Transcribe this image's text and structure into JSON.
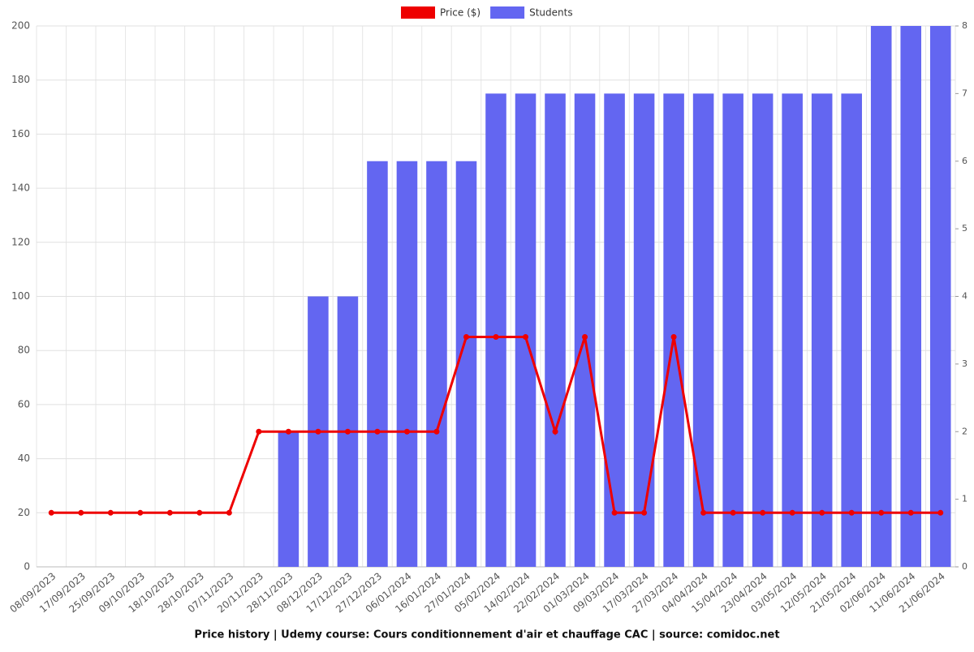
{
  "chart_data": {
    "type": "bar",
    "title": "Price history | Udemy course: Cours conditionnement d'air et chauffage CAC | source: comidoc.net",
    "categories": [
      "08/09/2023",
      "17/09/2023",
      "25/09/2023",
      "09/10/2023",
      "18/10/2023",
      "28/10/2023",
      "07/11/2023",
      "20/11/2023",
      "28/11/2023",
      "08/12/2023",
      "17/12/2023",
      "27/12/2023",
      "06/01/2024",
      "16/01/2024",
      "27/01/2024",
      "05/02/2024",
      "14/02/2024",
      "22/02/2024",
      "01/03/2024",
      "09/03/2024",
      "17/03/2024",
      "27/03/2024",
      "04/04/2024",
      "15/04/2024",
      "23/04/2024",
      "03/05/2024",
      "12/05/2024",
      "21/05/2024",
      "02/06/2024",
      "11/06/2024",
      "21/06/2024"
    ],
    "series": [
      {
        "name": "Price ($)",
        "type": "line",
        "color": "#ee0000",
        "axis": "y",
        "values": [
          20,
          20,
          20,
          20,
          20,
          20,
          20,
          50,
          50,
          50,
          50,
          50,
          50,
          50,
          85,
          85,
          85,
          50,
          85,
          20,
          20,
          85,
          20,
          20,
          20,
          20,
          20,
          20,
          20,
          20,
          20
        ]
      },
      {
        "name": "Students",
        "type": "bar",
        "color": "#6366f1",
        "axis": "y2",
        "values": [
          0,
          0,
          0,
          0,
          0,
          0,
          0,
          0,
          2,
          4,
          4,
          6,
          6,
          6,
          6,
          7,
          7,
          7,
          7,
          7,
          7,
          7,
          7,
          7,
          7,
          7,
          7,
          7,
          8,
          8,
          8
        ]
      }
    ],
    "ylim": [
      0,
      200
    ],
    "yticks": [
      0,
      20,
      40,
      60,
      80,
      100,
      120,
      140,
      160,
      180,
      200
    ],
    "y2lim": [
      0,
      8
    ],
    "y2ticks": [
      0,
      1,
      2,
      3,
      4,
      5,
      6,
      7,
      8
    ],
    "grid": true,
    "legend": "top"
  }
}
